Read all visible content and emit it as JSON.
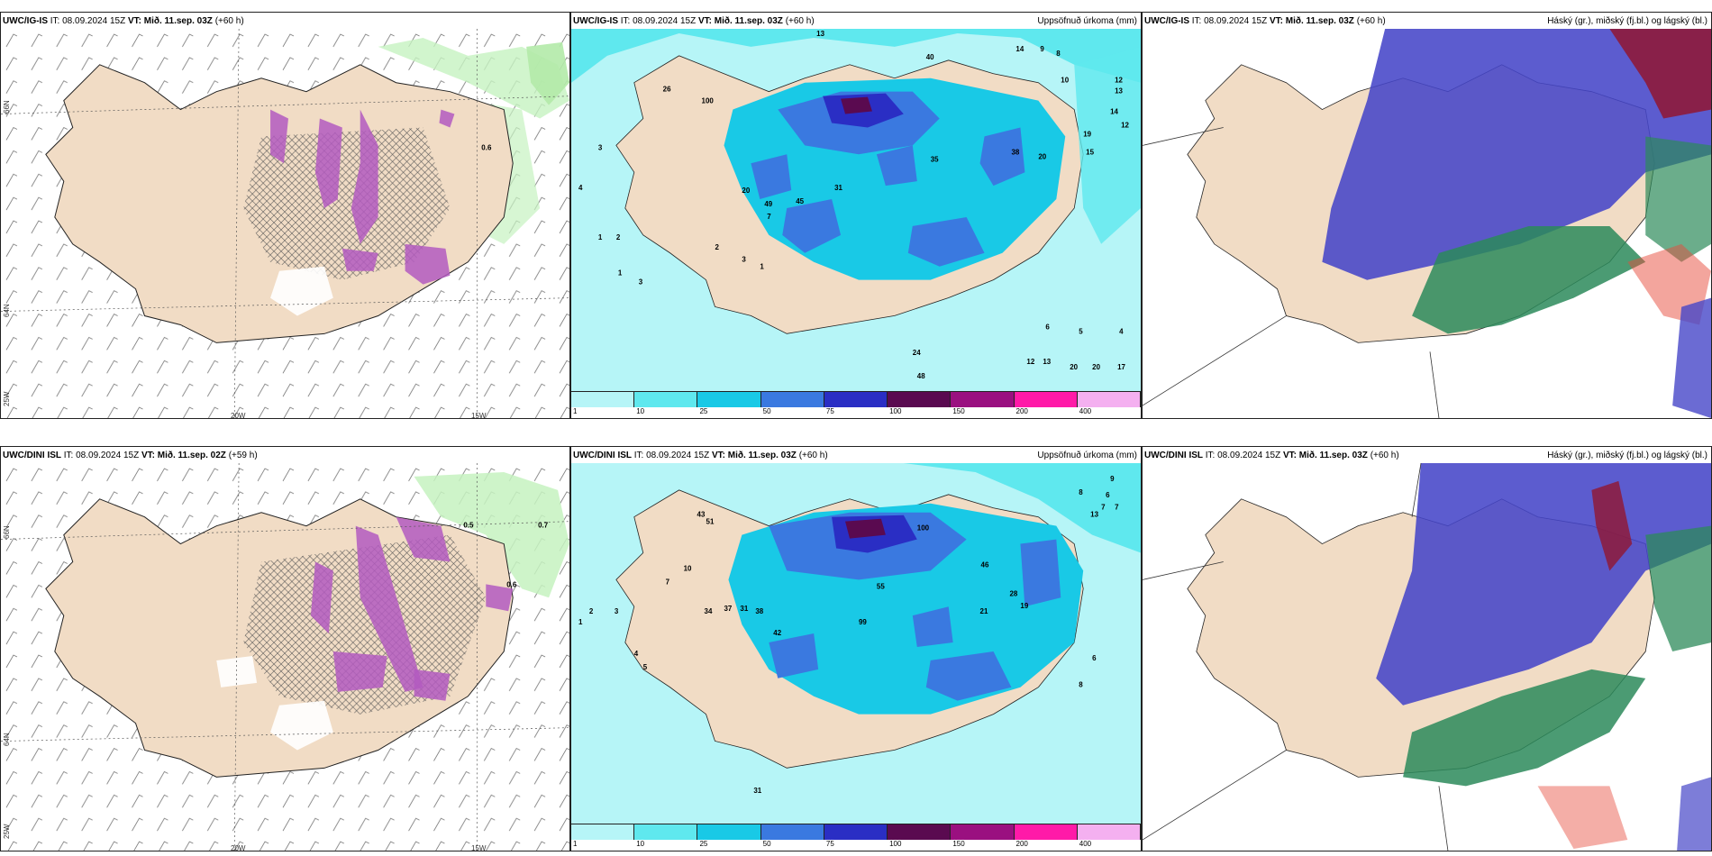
{
  "panels": [
    {
      "model": "UWC/IG-IS",
      "it": "IT: 08.09.2024 15Z",
      "vt_label": "VT:",
      "vt": "Mið. 11.sep. 03Z",
      "lead": "(+60 h)",
      "right": ""
    },
    {
      "model": "UWC/IG-IS",
      "it": "IT: 08.09.2024 15Z",
      "vt_label": "VT:",
      "vt": "Mið. 11.sep. 03Z",
      "lead": "(+60 h)",
      "right": "Uppsöfnuð úrkoma (mm)"
    },
    {
      "model": "UWC/IG-IS",
      "it": "IT: 08.09.2024 15Z",
      "vt_label": "VT:",
      "vt": "Mið. 11.sep. 03Z",
      "lead": "(+60 h)",
      "right": "Háský (gr.), miðský (fj.bl.) og lágský (bl.)"
    },
    {
      "model": "UWC/DINI ISL",
      "it": "IT: 08.09.2024 15Z",
      "vt_label": "VT:",
      "vt": "Mið. 11.sep. 02Z",
      "lead": "(+59 h)",
      "right": ""
    },
    {
      "model": "UWC/DINI ISL",
      "it": "IT: 08.09.2024 15Z",
      "vt_label": "VT:",
      "vt": "Mið. 11.sep. 03Z",
      "lead": "(+60 h)",
      "right": "Uppsöfnuð úrkoma (mm)"
    },
    {
      "model": "UWC/DINI ISL",
      "it": "IT: 08.09.2024 15Z",
      "vt_label": "VT:",
      "vt": "Mið. 11.sep. 03Z",
      "lead": "(+60 h)",
      "right": "Háský (gr.), miðský (fj.bl.) og lágský (bl.)"
    }
  ],
  "axis_labels": {
    "lon20": "20W",
    "lon15": "15W",
    "lat66": "66N",
    "lat64": "64N",
    "lon25": "25W"
  },
  "colorbar": {
    "ticks": [
      "1",
      "10",
      "25",
      "50",
      "75",
      "100",
      "150",
      "200",
      "400",
      ""
    ],
    "colors": [
      "#b6f5f7",
      "#5fe8ee",
      "#19c9e6",
      "#3a79e0",
      "#2a2ec4",
      "#5a0a50",
      "#9a1080",
      "#ff1aa8",
      "#f4b0f0"
    ]
  },
  "precip_top": [
    "13",
    "40",
    "14",
    "8",
    "9",
    "10",
    "12",
    "13",
    "14",
    "12",
    "19",
    "15",
    "20",
    "26",
    "3",
    "4",
    "1",
    "2",
    "1",
    "3",
    "24",
    "6",
    "5",
    "4",
    "48",
    "12",
    "13",
    "20",
    "20",
    "17",
    "100",
    "49",
    "45",
    "38",
    "35",
    "31",
    "20",
    "2",
    "3",
    "1",
    "7"
  ],
  "precip_bot": [
    "51",
    "43",
    "10",
    "7",
    "9",
    "13",
    "6",
    "7",
    "7",
    "8",
    "34",
    "37",
    "31",
    "38",
    "2",
    "3",
    "1",
    "4",
    "5",
    "6",
    "8",
    "31",
    "42",
    "99",
    "100",
    "55",
    "46",
    "21",
    "28",
    "19"
  ],
  "cloud_colors": {
    "high": "#4646c8",
    "mid": "#2c8a5a",
    "low": "#e74c3c",
    "land": "#f1dcc5"
  }
}
